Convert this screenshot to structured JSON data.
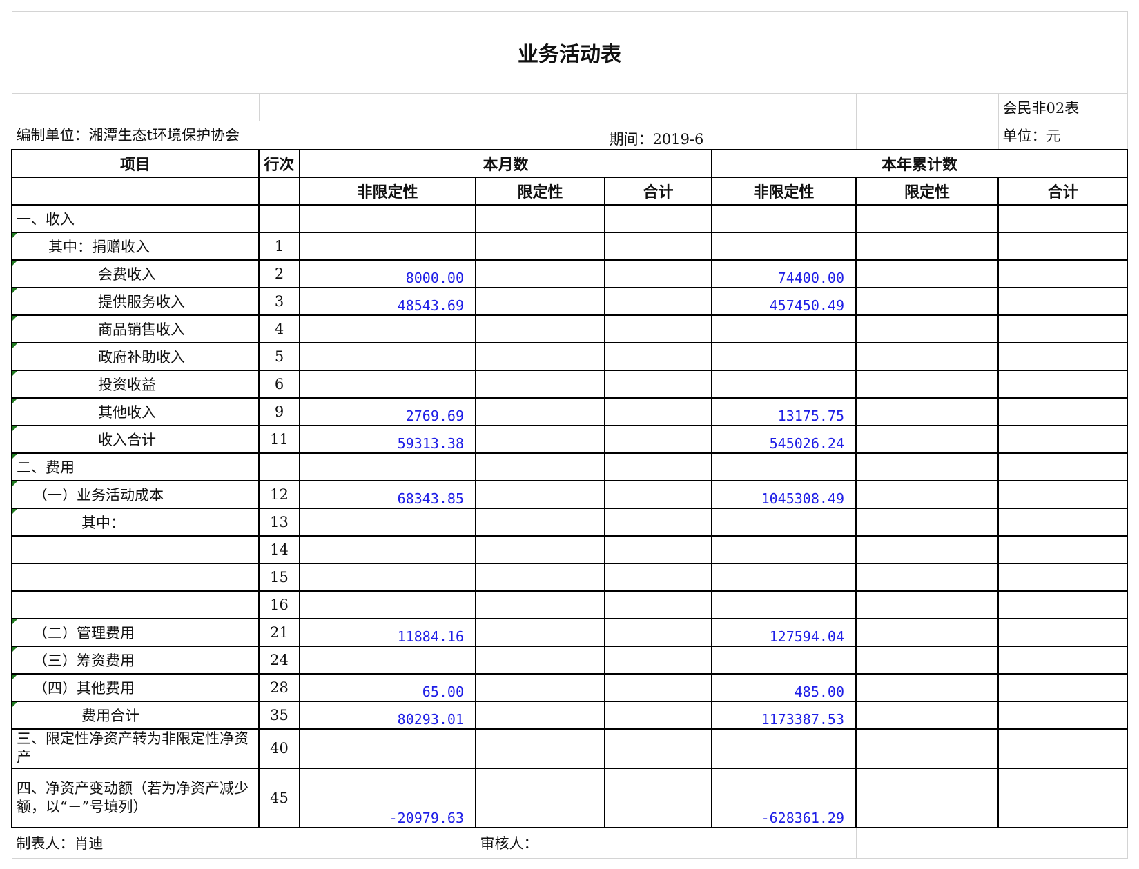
{
  "title": "业务活动表",
  "form_code": "会民非02表",
  "org_label": "编制单位：湘潭生态t环境保护协会",
  "period_label": "期间：2019-6",
  "unit_label": "单位：元",
  "headers": {
    "item": "项目",
    "line_no": "行次",
    "this_month": "本月数",
    "ytd": "本年累计数",
    "sub": [
      "非限定性",
      "限定性",
      "合计",
      "非限定性",
      "限定性",
      "合计"
    ]
  },
  "rows": [
    {
      "item": "一、收入",
      "line": "",
      "values": [
        "",
        "",
        "",
        "",
        "",
        ""
      ]
    },
    {
      "item": "其中：捐赠收入",
      "line": "1",
      "values": [
        "",
        "",
        "",
        "",
        "",
        ""
      ]
    },
    {
      "item": "会费收入",
      "line": "2",
      "values": [
        "8000.00",
        "",
        "",
        "74400.00",
        "",
        ""
      ]
    },
    {
      "item": "提供服务收入",
      "line": "3",
      "values": [
        "48543.69",
        "",
        "",
        "457450.49",
        "",
        ""
      ]
    },
    {
      "item": "商品销售收入",
      "line": "4",
      "values": [
        "",
        "",
        "",
        "",
        "",
        ""
      ]
    },
    {
      "item": "政府补助收入",
      "line": "5",
      "values": [
        "",
        "",
        "",
        "",
        "",
        ""
      ]
    },
    {
      "item": "投资收益",
      "line": "6",
      "values": [
        "",
        "",
        "",
        "",
        "",
        ""
      ]
    },
    {
      "item": "其他收入",
      "line": "9",
      "values": [
        "2769.69",
        "",
        "",
        "13175.75",
        "",
        ""
      ]
    },
    {
      "item": "收入合计",
      "line": "11",
      "values": [
        "59313.38",
        "",
        "",
        "545026.24",
        "",
        ""
      ]
    },
    {
      "item": "二、费用",
      "line": "",
      "values": [
        "",
        "",
        "",
        "",
        "",
        ""
      ]
    },
    {
      "item": "（一）业务活动成本",
      "line": "12",
      "values": [
        "68343.85",
        "",
        "",
        "1045308.49",
        "",
        ""
      ]
    },
    {
      "item": "其中：",
      "line": "13",
      "values": [
        "",
        "",
        "",
        "",
        "",
        ""
      ]
    },
    {
      "item": "",
      "line": "14",
      "values": [
        "",
        "",
        "",
        "",
        "",
        ""
      ]
    },
    {
      "item": "",
      "line": "15",
      "values": [
        "",
        "",
        "",
        "",
        "",
        ""
      ]
    },
    {
      "item": "",
      "line": "16",
      "values": [
        "",
        "",
        "",
        "",
        "",
        ""
      ]
    },
    {
      "item": "（二）管理费用",
      "line": "21",
      "values": [
        "11884.16",
        "",
        "",
        "127594.04",
        "",
        ""
      ]
    },
    {
      "item": "（三）筹资费用",
      "line": "24",
      "values": [
        "",
        "",
        "",
        "",
        "",
        ""
      ]
    },
    {
      "item": "（四）其他费用",
      "line": "28",
      "values": [
        "65.00",
        "",
        "",
        "485.00",
        "",
        ""
      ]
    },
    {
      "item": "费用合计",
      "line": "35",
      "values": [
        "80293.01",
        "",
        "",
        "1173387.53",
        "",
        ""
      ]
    },
    {
      "item": "三、限定性净资产转为非限定性净资产",
      "line": "40",
      "values": [
        "",
        "",
        "",
        "",
        "",
        ""
      ]
    },
    {
      "item": "四、净资产变动额（若为净资产减少额，以“－”号填列）",
      "line": "45",
      "values": [
        "-20979.63",
        "",
        "",
        "-628361.29",
        "",
        ""
      ]
    }
  ],
  "footer": {
    "preparer": "制表人：肖迪",
    "reviewer": "审核人："
  },
  "colors": {
    "numbers": "#1e1ee6",
    "indicator": "#1f7a1f",
    "gridline": "#d4d4d4"
  }
}
